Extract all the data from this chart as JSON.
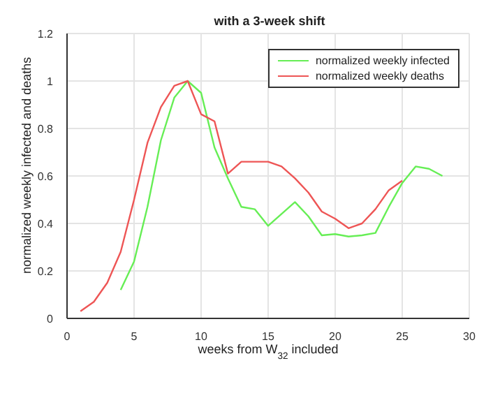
{
  "chart_data": {
    "type": "line",
    "title": "with a 3-week shift",
    "xlabel": "weeks from W$_{32}$ included",
    "ylabel": "normalized weekly infected and deaths",
    "series": [
      {
        "name": "normalized weekly infected",
        "color": "#66ee55",
        "x": [
          4,
          5,
          6,
          7,
          8,
          9,
          10,
          11,
          12,
          13,
          14,
          15,
          16,
          17,
          18,
          19,
          20,
          21,
          22,
          23,
          24,
          25,
          26,
          27,
          28
        ],
        "values": [
          0.12,
          0.24,
          0.47,
          0.75,
          0.93,
          1.0,
          0.95,
          0.72,
          0.59,
          0.47,
          0.46,
          0.39,
          0.44,
          0.49,
          0.43,
          0.35,
          0.355,
          0.345,
          0.35,
          0.36,
          0.47,
          0.57,
          0.64,
          0.63,
          0.6
        ]
      },
      {
        "name": "normalized weekly deaths",
        "color": "#ee5555",
        "x": [
          1,
          2,
          3,
          4,
          5,
          6,
          7,
          8,
          9,
          10,
          11,
          12,
          13,
          14,
          15,
          16,
          17,
          18,
          19,
          20,
          21,
          22,
          23,
          24,
          25
        ],
        "values": [
          0.03,
          0.07,
          0.15,
          0.28,
          0.5,
          0.74,
          0.89,
          0.98,
          1.0,
          0.86,
          0.83,
          0.61,
          0.66,
          0.66,
          0.66,
          0.64,
          0.59,
          0.53,
          0.45,
          0.42,
          0.38,
          0.4,
          0.46,
          0.54,
          0.58
        ]
      }
    ],
    "xlim": [
      0,
      30
    ],
    "xticks": [
      0,
      5,
      10,
      15,
      20,
      25,
      30
    ],
    "ylim": [
      0,
      1.2
    ],
    "yticks": [
      0,
      0.2,
      0.4,
      0.6,
      0.8,
      1,
      1.2
    ],
    "grid": true,
    "legend": "top right",
    "marker": "none",
    "line_style": "solid"
  }
}
